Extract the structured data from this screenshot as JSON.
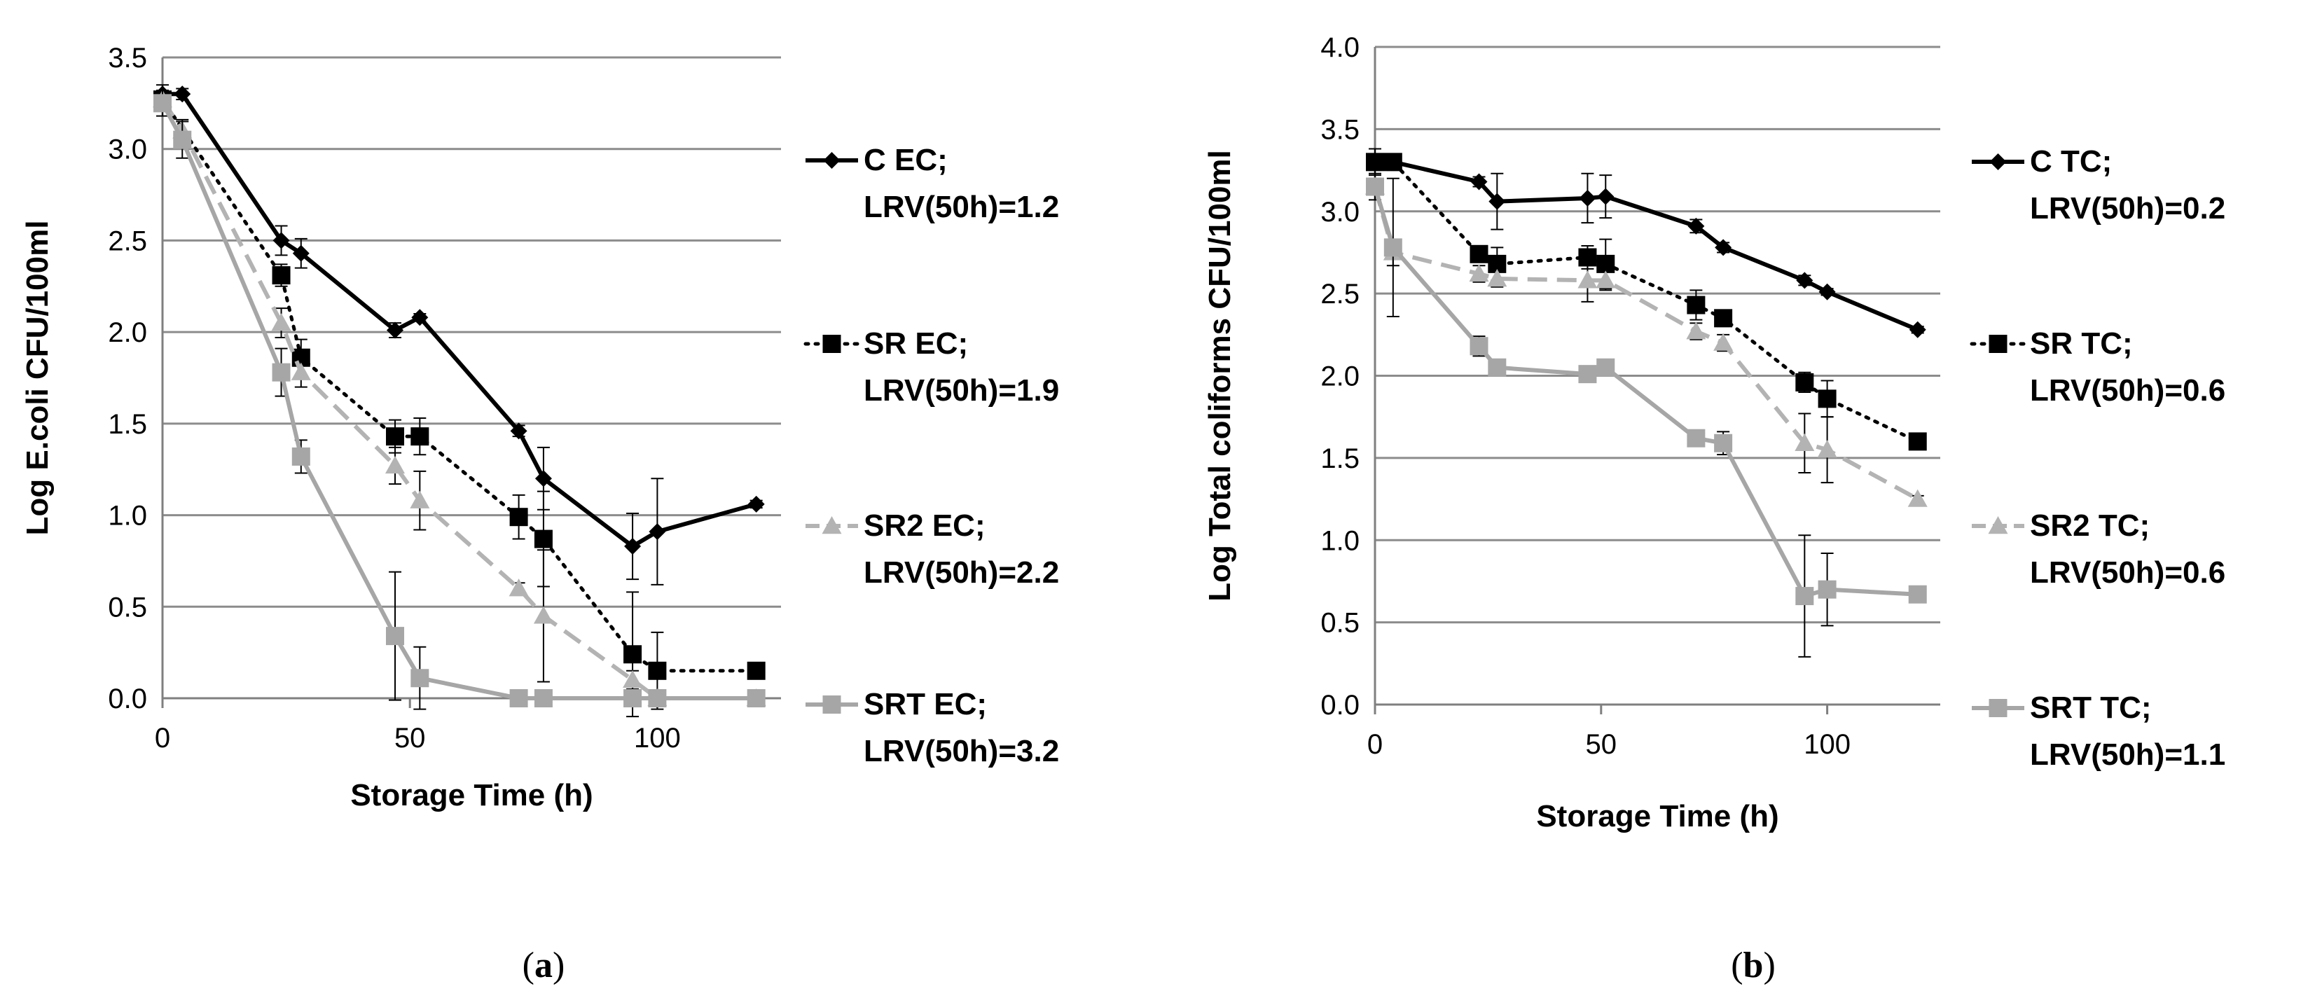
{
  "chart_data": [
    {
      "type": "line",
      "panel_label": "a",
      "xlabel": "Storage Time (h)",
      "ylabel": "Log E.coli CFU/100ml",
      "xlim": [
        0,
        125
      ],
      "ylim": [
        0,
        3.5
      ],
      "xticks": [
        0,
        50,
        100
      ],
      "xtick_labels": [
        "0",
        "50",
        "100"
      ],
      "yticks": [
        0,
        0.5,
        1,
        1.5,
        2,
        2.5,
        3,
        3.5
      ],
      "ytick_labels": [
        "0.0",
        "0.5",
        "1.0",
        "1.5",
        "2.0",
        "2.5",
        "3.0",
        "3.5"
      ],
      "grid": "horizontal",
      "legend_position": "right",
      "series": [
        {
          "name": "C EC;",
          "name_line2": "LRV(50h)=1.2",
          "color": "#000000",
          "dash": "solid",
          "marker": "diamond",
          "points": [
            {
              "x": 0,
              "y": 3.3,
              "err": 0.05
            },
            {
              "x": 4,
              "y": 3.3,
              "err": 0.03
            },
            {
              "x": 24,
              "y": 2.5,
              "err": 0.08
            },
            {
              "x": 28,
              "y": 2.43,
              "err": 0.08
            },
            {
              "x": 47,
              "y": 2.01,
              "err": 0.04
            },
            {
              "x": 52,
              "y": 2.08,
              "err": 0.02
            },
            {
              "x": 72,
              "y": 1.46,
              "err": 0.03
            },
            {
              "x": 77,
              "y": 1.2,
              "err": 0.17
            },
            {
              "x": 95,
              "y": 0.83,
              "err": 0.18
            },
            {
              "x": 100,
              "y": 0.91,
              "err": 0.29
            },
            {
              "x": 120,
              "y": 1.06,
              "err": 0.02
            }
          ]
        },
        {
          "name": "SR EC;",
          "name_line2": "LRV(50h)=1.9",
          "color": "#000000",
          "dash": "dotted",
          "marker": "square",
          "points": [
            {
              "x": 0,
              "y": 3.27,
              "err": 0.05
            },
            {
              "x": 24,
              "y": 2.31,
              "err": 0.06
            },
            {
              "x": 28,
              "y": 1.86,
              "err": 0.1
            },
            {
              "x": 47,
              "y": 1.43,
              "err": 0.09
            },
            {
              "x": 52,
              "y": 1.43,
              "err": 0.1
            },
            {
              "x": 72,
              "y": 0.99,
              "err": 0.12
            },
            {
              "x": 77,
              "y": 0.87,
              "err": 0.26
            },
            {
              "x": 95,
              "y": 0.24,
              "err": 0.34
            },
            {
              "x": 100,
              "y": 0.15,
              "err": 0.21
            },
            {
              "x": 120,
              "y": 0.15,
              "err": 0.02
            }
          ]
        },
        {
          "name": "SR2 EC;",
          "name_line2": "LRV(50h)=2.2",
          "color": "#b3b3b3",
          "dash": "dashed",
          "marker": "triangle",
          "points": [
            {
              "x": 0,
              "y": 3.27,
              "err": 0.05
            },
            {
              "x": 4,
              "y": 3.1,
              "err": 0.06
            },
            {
              "x": 24,
              "y": 2.05,
              "err": 0.08
            },
            {
              "x": 28,
              "y": 1.78,
              "err": 0.08
            },
            {
              "x": 47,
              "y": 1.27,
              "err": 0.1
            },
            {
              "x": 52,
              "y": 1.08,
              "err": 0.16
            },
            {
              "x": 72,
              "y": 0.6,
              "err": 0.03
            },
            {
              "x": 77,
              "y": 0.45,
              "err": 0.36
            },
            {
              "x": 95,
              "y": 0.1,
              "err": 0.05
            },
            {
              "x": 100,
              "y": 0.0,
              "err": 0.0
            },
            {
              "x": 120,
              "y": 0.0,
              "err": 0.0
            }
          ]
        },
        {
          "name": "SRT EC;",
          "name_line2": "LRV(50h)=3.2",
          "color": "#a6a6a6",
          "dash": "solid",
          "marker": "square",
          "points": [
            {
              "x": 0,
              "y": 3.25,
              "err": 0.07
            },
            {
              "x": 4,
              "y": 3.05,
              "err": 0.1
            },
            {
              "x": 24,
              "y": 1.78,
              "err": 0.13
            },
            {
              "x": 28,
              "y": 1.32,
              "err": 0.09
            },
            {
              "x": 47,
              "y": 0.34,
              "err": 0.35
            },
            {
              "x": 52,
              "y": 0.11,
              "err": 0.17
            },
            {
              "x": 72,
              "y": 0.0,
              "err": 0.0
            },
            {
              "x": 77,
              "y": 0.0,
              "err": 0.0
            },
            {
              "x": 95,
              "y": 0.0,
              "err": 0.0
            },
            {
              "x": 100,
              "y": 0.0,
              "err": 0.0
            },
            {
              "x": 120,
              "y": 0.0,
              "err": 0.0
            }
          ]
        }
      ]
    },
    {
      "type": "line",
      "panel_label": "b",
      "xlabel": "Storage Time (h)",
      "ylabel": "Log Total coliforms CFU/100ml",
      "xlim": [
        0,
        125
      ],
      "ylim": [
        0,
        4.0
      ],
      "xticks": [
        0,
        50,
        100
      ],
      "xtick_labels": [
        "0",
        "50",
        "100"
      ],
      "yticks": [
        0,
        0.5,
        1,
        1.5,
        2,
        2.5,
        3,
        3.5,
        4
      ],
      "ytick_labels": [
        "0.0",
        "0.5",
        "1.0",
        "1.5",
        "2.0",
        "2.5",
        "3.0",
        "3.5",
        "4.0"
      ],
      "grid": "horizontal",
      "legend_position": "right",
      "series": [
        {
          "name": "C TC;",
          "name_line2": "LRV(50h)=0.2",
          "color": "#000000",
          "dash": "solid",
          "marker": "diamond",
          "points": [
            {
              "x": 0,
              "y": 3.3,
              "err": 0.08
            },
            {
              "x": 4,
              "y": 3.3,
              "err": 0.05
            },
            {
              "x": 23,
              "y": 3.18,
              "err": 0.03
            },
            {
              "x": 27,
              "y": 3.06,
              "err": 0.17
            },
            {
              "x": 47,
              "y": 3.08,
              "err": 0.15
            },
            {
              "x": 51,
              "y": 3.09,
              "err": 0.13
            },
            {
              "x": 71,
              "y": 2.91,
              "err": 0.04
            },
            {
              "x": 77,
              "y": 2.78,
              "err": 0.03
            },
            {
              "x": 95,
              "y": 2.58,
              "err": 0.03
            },
            {
              "x": 100,
              "y": 2.51,
              "err": 0.02
            },
            {
              "x": 120,
              "y": 2.28,
              "err": 0.02
            }
          ]
        },
        {
          "name": "SR TC;",
          "name_line2": "LRV(50h)=0.6",
          "color": "#000000",
          "dash": "dotted",
          "marker": "square",
          "points": [
            {
              "x": 0,
              "y": 3.3,
              "err": 0.05
            },
            {
              "x": 4,
              "y": 3.3,
              "err": 0.04
            },
            {
              "x": 23,
              "y": 2.74,
              "err": 0.05
            },
            {
              "x": 27,
              "y": 2.68,
              "err": 0.1
            },
            {
              "x": 47,
              "y": 2.72,
              "err": 0.07
            },
            {
              "x": 51,
              "y": 2.68,
              "err": 0.15
            },
            {
              "x": 71,
              "y": 2.43,
              "err": 0.09
            },
            {
              "x": 77,
              "y": 2.35,
              "err": 0.05
            },
            {
              "x": 95,
              "y": 1.96,
              "err": 0.06
            },
            {
              "x": 100,
              "y": 1.86,
              "err": 0.11
            },
            {
              "x": 120,
              "y": 1.6,
              "err": 0.03
            }
          ]
        },
        {
          "name": "SR2 TC;",
          "name_line2": "LRV(50h)=0.6",
          "color": "#b3b3b3",
          "dash": "dashed",
          "marker": "triangle",
          "points": [
            {
              "x": 0,
              "y": 3.15,
              "err": 0.08
            },
            {
              "x": 4,
              "y": 2.75,
              "err": 0.08
            },
            {
              "x": 23,
              "y": 2.62,
              "err": 0.05
            },
            {
              "x": 27,
              "y": 2.59,
              "err": 0.05
            },
            {
              "x": 47,
              "y": 2.58,
              "err": 0.13
            },
            {
              "x": 51,
              "y": 2.58,
              "err": 0.06
            },
            {
              "x": 71,
              "y": 2.27,
              "err": 0.05
            },
            {
              "x": 77,
              "y": 2.2,
              "err": 0.05
            },
            {
              "x": 95,
              "y": 1.59,
              "err": 0.18
            },
            {
              "x": 100,
              "y": 1.55,
              "err": 0.2
            },
            {
              "x": 120,
              "y": 1.25,
              "err": 0.02
            }
          ]
        },
        {
          "name": "SRT TC;",
          "name_line2": "LRV(50h)=1.1",
          "color": "#a6a6a6",
          "dash": "solid",
          "marker": "square",
          "points": [
            {
              "x": 0,
              "y": 3.15,
              "err": 0.05
            },
            {
              "x": 4,
              "y": 2.78,
              "err": 0.42
            },
            {
              "x": 23,
              "y": 2.18,
              "err": 0.06
            },
            {
              "x": 27,
              "y": 2.05,
              "err": 0.03
            },
            {
              "x": 47,
              "y": 2.01,
              "err": 0.02
            },
            {
              "x": 51,
              "y": 2.05,
              "err": 0.02
            },
            {
              "x": 71,
              "y": 1.62,
              "err": 0.04
            },
            {
              "x": 77,
              "y": 1.59,
              "err": 0.07
            },
            {
              "x": 95,
              "y": 0.66,
              "err": 0.37
            },
            {
              "x": 100,
              "y": 0.7,
              "err": 0.22
            },
            {
              "x": 120,
              "y": 0.67,
              "err": 0.02
            }
          ]
        }
      ]
    }
  ]
}
